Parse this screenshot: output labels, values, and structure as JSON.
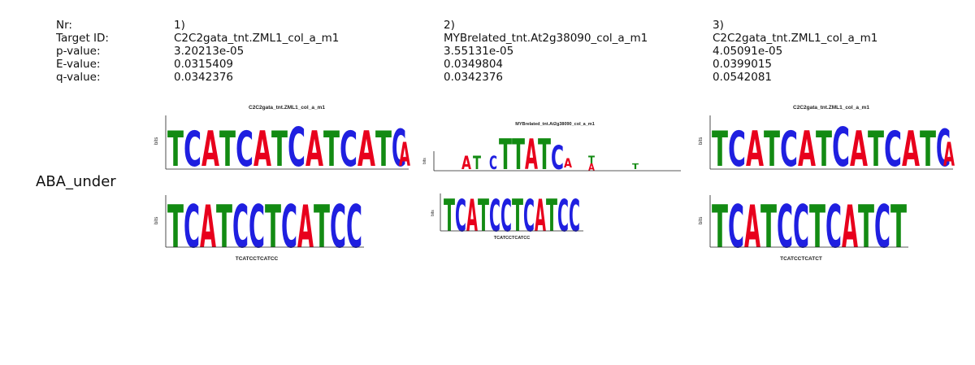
{
  "header_labels": {
    "nr": "Nr:",
    "target": "Target ID:",
    "pvalue": "p-value:",
    "evalue": "E-value:",
    "qvalue": "q-value:"
  },
  "row_label": "ABA_under",
  "matches": [
    {
      "nr": "1)",
      "target": "C2C2gata_tnt.ZML1_col_a_m1",
      "pvalue": "3.20213e-05",
      "evalue": "0.0315409",
      "qvalue": "0.0342376",
      "top_title": "C2C2gata_tnt.ZML1_col_a_m1",
      "bottom_title": "TCATCCTCATCC"
    },
    {
      "nr": "2)",
      "target": "MYBrelated_tnt.At2g38090_col_a_m1",
      "pvalue": "3.55131e-05",
      "evalue": "0.0349804",
      "qvalue": "0.0342376",
      "top_title": "MYBrelated_tnt.At2g38090_col_a_m1",
      "bottom_title": "TCATCCTCATCC"
    },
    {
      "nr": "3)",
      "target": "C2C2gata_tnt.ZML1_col_a_m1",
      "pvalue": "4.05091e-05",
      "evalue": "0.0399015",
      "qvalue": "0.0542081",
      "top_title": "C2C2gata_tnt.ZML1_col_a_m1",
      "bottom_title": "TCATCCTCATCT"
    }
  ],
  "axis_label": "bits",
  "colors": {
    "A": "#e8001c",
    "C": "#1f1fe0",
    "G": "#f2a300",
    "T": "#138b13"
  }
}
